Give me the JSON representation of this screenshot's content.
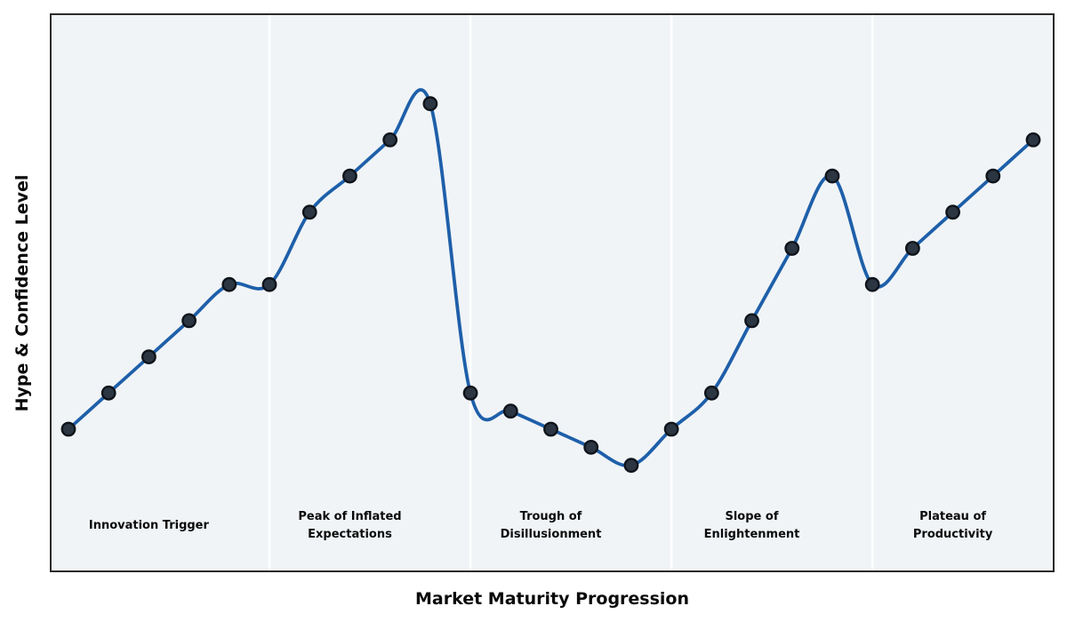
{
  "chart_data": {
    "type": "line",
    "title": "",
    "xlabel": "Market Maturity Progression",
    "ylabel": "Hype & Confidence Level",
    "x": [
      0,
      1,
      2,
      3,
      4,
      5,
      6,
      7,
      8,
      9,
      10,
      11,
      12,
      13,
      14,
      15,
      16,
      17,
      18,
      19,
      20,
      21,
      22,
      23,
      24
    ],
    "values": [
      10,
      20,
      30,
      40,
      50,
      50,
      70,
      80,
      90,
      100,
      20,
      15,
      10,
      5,
      0,
      10,
      20,
      40,
      60,
      80,
      50,
      60,
      70,
      80,
      90
    ],
    "ylim": [
      -29,
      125
    ],
    "xlim": [
      -1.2,
      25.2
    ],
    "grid": false,
    "legend": "none",
    "smoothing": "catmull-rom-spline",
    "tick_labels": "none",
    "dividers_x": [
      5,
      10,
      15,
      20
    ],
    "phases": [
      {
        "label": "Innovation Trigger",
        "center_x": 2
      },
      {
        "label": "Peak of Inflated\nExpectations",
        "center_x": 7
      },
      {
        "label": "Trough of\nDisillusionment",
        "center_x": 12
      },
      {
        "label": "Slope of\nEnlightenment",
        "center_x": 17
      },
      {
        "label": "Plateau of\nProductivity",
        "center_x": 22
      }
    ],
    "colors": {
      "line": "#1e5fa9",
      "marker": "#2b3642",
      "marker_edge": "#0f141b",
      "plot_background": "#f0f4f7",
      "divider": "#ffffff",
      "border": "#2b2b2b",
      "text": "#0a0a0a",
      "figure_background": "#ffffff"
    }
  }
}
